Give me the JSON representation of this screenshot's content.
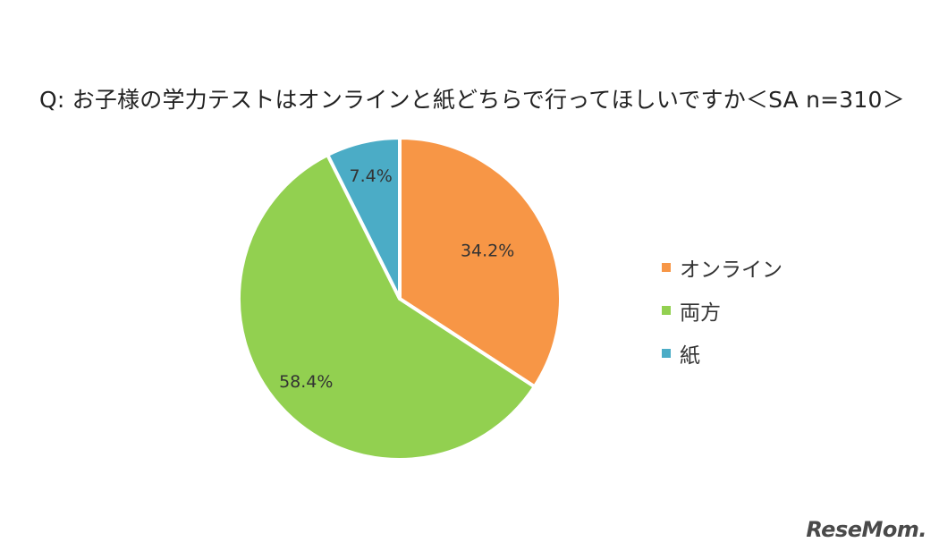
{
  "chart_data": {
    "type": "pie",
    "title": "Q: お子様の学力テストはオンラインと紙どちらで行ってほしいですか＜SA n=310＞",
    "slices": [
      {
        "label": "オンライン",
        "value": 34.2,
        "display": "34.2%",
        "color": "#F79646"
      },
      {
        "label": "両方",
        "value": 58.4,
        "display": "58.4%",
        "color": "#92D050"
      },
      {
        "label": "紙",
        "value": 7.4,
        "display": "7.4%",
        "color": "#4BACC6"
      }
    ],
    "start_angle_deg": 0,
    "direction": "clockwise",
    "legend_placement": "right"
  },
  "watermark": "ReseMom"
}
